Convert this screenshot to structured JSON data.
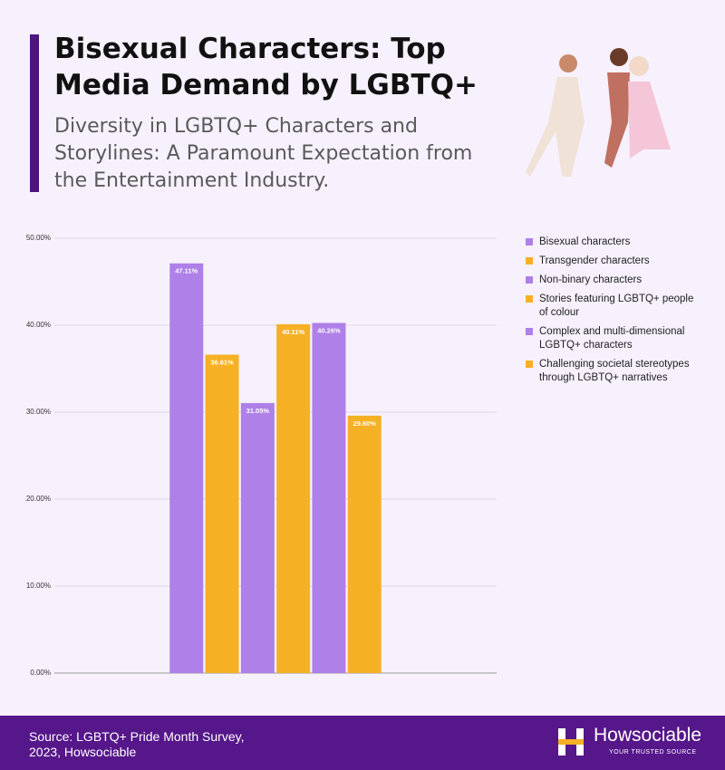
{
  "chart_data": {
    "type": "bar",
    "title": "Bisexual Characters: Top Media Demand by LGBTQ+",
    "subtitle": "Diversity in LGBTQ+ Characters and Storylines: A Paramount Expectation from the Entertainment Industry.",
    "series": [
      {
        "name": "Bisexual characters",
        "color": "#ae80e8",
        "values": [
          47.11
        ],
        "value_labels": [
          "47.11%"
        ]
      },
      {
        "name": "Transgender characters",
        "color": "#f6b024",
        "values": [
          36.61
        ],
        "value_labels": [
          "36.61%"
        ]
      },
      {
        "name": "Non-binary characters",
        "color": "#ae80e8",
        "values": [
          31.05
        ],
        "value_labels": [
          "31.05%"
        ]
      },
      {
        "name": "Stories featuring LGBTQ+ people of colour",
        "color": "#f6b024",
        "values": [
          40.11
        ],
        "value_labels": [
          "40.11%"
        ]
      },
      {
        "name": "Complex and multi-dimensional LGBTQ+ characters",
        "color": "#ae80e8",
        "values": [
          40.26
        ],
        "value_labels": [
          "40.26%"
        ]
      },
      {
        "name": "Challenging societal stereotypes through LGBTQ+ narratives",
        "color": "#f6b024",
        "values": [
          29.6
        ],
        "value_labels": [
          "29.60%"
        ]
      }
    ],
    "ylim": [
      0,
      50
    ],
    "yticks": [
      {
        "value": 0,
        "label": "0.00%"
      },
      {
        "value": 10,
        "label": "10.00%"
      },
      {
        "value": 20,
        "label": "20.00%"
      },
      {
        "value": 30,
        "label": "30.00%"
      },
      {
        "value": 40,
        "label": "40.00%"
      },
      {
        "value": 50,
        "label": "50.00%"
      }
    ],
    "grid": true,
    "legend": "right"
  },
  "footer": {
    "source": "Source: LGBTQ+ Pride Month Survey, 2023, Howsociable",
    "brand": "Howsociable",
    "tagline": "YOUR TRUSTED SOURCE"
  }
}
